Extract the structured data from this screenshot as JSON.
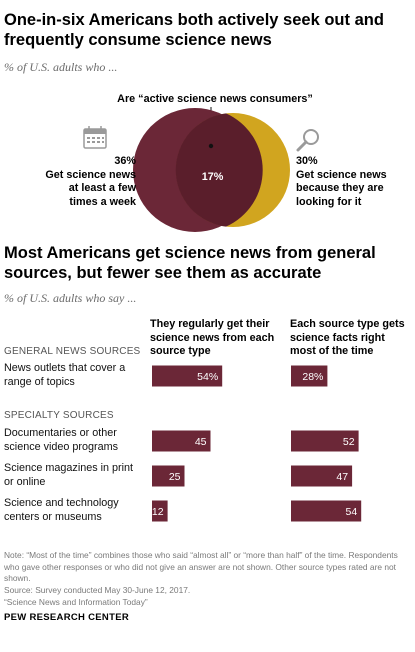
{
  "venn": {
    "title": "One-in-six Americans both actively seek out and frequently consume science news",
    "subtitle": "% of U.S. adults who ...",
    "overlap_caption": "Are “active science news consumers”",
    "left_pct": "36%",
    "left_text": "Get science news at least a few times a week",
    "left_icon": "calendar-icon",
    "right_pct": "30%",
    "right_text": "Get science news because they are looking for it",
    "right_icon": "magnifier-icon",
    "overlap_pct": "17%",
    "colors": {
      "left": "#6b2737",
      "right": "#d1a51f",
      "overlap": "#5a1e2b"
    }
  },
  "chart_title": "Most Americans get science news from general sources, but fewer see them as accurate",
  "chart_subtitle": "% of U.S. adults who say ...",
  "col1_head": "They regularly get their science news from each source type",
  "col2_head": "Each source type gets science facts right most of the time",
  "sections": {
    "general": "GENERAL NEWS SOURCES",
    "specialty": "SPECIALTY SOURCES"
  },
  "chart_data": {
    "type": "bar",
    "categories": [
      "News outlets that cover a range of topics",
      "Documentaries or other science video programs",
      "Science magazines in print or online",
      "Science and technology centers or museums"
    ],
    "series": [
      {
        "name": "They regularly get their science news from each source type",
        "values": [
          54,
          45,
          25,
          12
        ],
        "labels": [
          "54%",
          "45",
          "25",
          "12"
        ]
      },
      {
        "name": "Each source type gets science facts right most of the time",
        "values": [
          28,
          52,
          47,
          54
        ],
        "labels": [
          "28%",
          "52",
          "47",
          "54"
        ]
      }
    ],
    "bar_color": "#6b2737"
  },
  "note": "Note: “Most of the time” combines those who said “almost all” or “more than half” of the time. Respondents who gave other responses or who did not give an answer are not shown. Other source types rated are not shown.",
  "source_line": "Source: Survey conducted May 30-June 12, 2017.",
  "report": "“Science News and Information Today”",
  "org": "PEW RESEARCH CENTER"
}
